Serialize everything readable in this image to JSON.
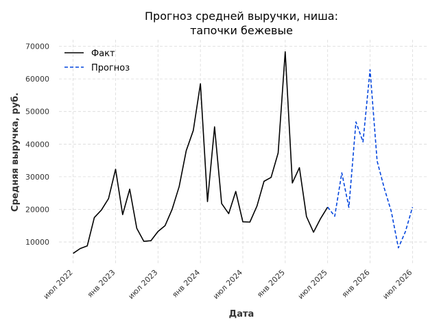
{
  "chart_data": {
    "type": "line",
    "title_line1": "Прогноз средней выручки, ниша:",
    "title_line2": "тапочки бежевые",
    "xlabel": "Дата",
    "ylabel": "Средняя выручка, руб.",
    "ylim": [
      3500,
      72000
    ],
    "grid": true,
    "legend_position": "top-left",
    "y_ticks": [
      10000,
      20000,
      30000,
      40000,
      50000,
      60000,
      70000
    ],
    "x_ticks": [
      {
        "date": "2022-07",
        "label": "июл 2022"
      },
      {
        "date": "2023-01",
        "label": "янв 2023"
      },
      {
        "date": "2023-07",
        "label": "июл 2023"
      },
      {
        "date": "2024-01",
        "label": "янв 2024"
      },
      {
        "date": "2024-07",
        "label": "июл 2024"
      },
      {
        "date": "2025-01",
        "label": "янв 2025"
      },
      {
        "date": "2025-07",
        "label": "июл 2025"
      },
      {
        "date": "2026-01",
        "label": "янв 2026"
      },
      {
        "date": "2026-07",
        "label": "июл 2026"
      }
    ],
    "series": [
      {
        "name": "Факт",
        "color": "#000000",
        "style": "solid",
        "x": [
          "2022-07",
          "2022-08",
          "2022-09",
          "2022-10",
          "2022-11",
          "2022-12",
          "2023-01",
          "2023-02",
          "2023-03",
          "2023-04",
          "2023-05",
          "2023-06",
          "2023-07",
          "2023-08",
          "2023-09",
          "2023-10",
          "2023-11",
          "2023-12",
          "2024-01",
          "2024-02",
          "2024-03",
          "2024-04",
          "2024-05",
          "2024-06",
          "2024-07",
          "2024-08",
          "2024-09",
          "2024-10",
          "2024-11",
          "2024-12",
          "2025-01",
          "2025-02",
          "2025-03",
          "2025-04",
          "2025-05",
          "2025-06",
          "2025-07"
        ],
        "values": [
          6500,
          8000,
          8800,
          17500,
          19800,
          23300,
          32300,
          18400,
          26200,
          14200,
          10200,
          10400,
          13200,
          15000,
          20000,
          27000,
          38000,
          44200,
          58500,
          22400,
          45300,
          21800,
          18700,
          25500,
          16200,
          16100,
          21000,
          28600,
          29800,
          37300,
          68300,
          28100,
          32800,
          17800,
          13000,
          17200,
          20700
        ]
      },
      {
        "name": "Прогноз",
        "color": "#0044dd",
        "style": "dashed",
        "x": [
          "2025-07",
          "2025-08",
          "2025-09",
          "2025-10",
          "2025-11",
          "2025-12",
          "2026-01",
          "2026-02",
          "2026-03",
          "2026-04",
          "2026-05",
          "2026-06",
          "2026-07"
        ],
        "values": [
          20700,
          17900,
          31200,
          20600,
          46800,
          40700,
          62800,
          34800,
          26500,
          19300,
          8200,
          13200,
          20700
        ]
      }
    ]
  },
  "colors": {
    "grid": "#d9d9d9",
    "text": "#333333"
  }
}
